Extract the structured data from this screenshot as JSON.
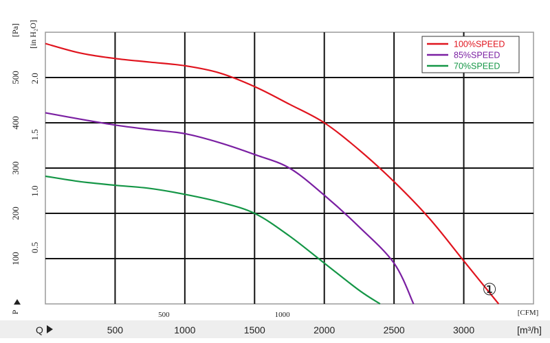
{
  "chart_data": {
    "type": "line",
    "grid": true,
    "legend_position": "top-right",
    "x_axis": {
      "unit": "[m³/h]",
      "ticks": [
        "500",
        "1000",
        "1500",
        "2000",
        "2500",
        "3000"
      ],
      "range": [
        0,
        3500
      ]
    },
    "x_axis_secondary": {
      "unit": "[CFM]",
      "ticks": [
        "500",
        "1000"
      ]
    },
    "y_axis": {
      "unit": "[Pa]",
      "ticks": [
        "100",
        "200",
        "300",
        "400",
        "500"
      ],
      "range": [
        0,
        600
      ]
    },
    "y_axis_secondary": {
      "unit": "[in H₂O]",
      "ticks": [
        "0.5",
        "1.0",
        "1.5",
        "2.0"
      ]
    },
    "q_label": "Q",
    "p_label": "P",
    "curve_marker": "①",
    "series": [
      {
        "name": "100%SPEED",
        "color": "#e0141e",
        "x": [
          0,
          250,
          500,
          750,
          1000,
          1250,
          1500,
          1750,
          2000,
          2250,
          2500,
          2750,
          3000,
          3250
        ],
        "y": [
          575,
          554,
          542,
          534,
          526,
          510,
          480,
          441,
          400,
          340,
          270,
          190,
          95,
          0
        ]
      },
      {
        "name": "85%SPEED",
        "color": "#7a1fa2",
        "x": [
          0,
          250,
          500,
          750,
          1000,
          1250,
          1500,
          1750,
          2000,
          2250,
          2500,
          2750,
          3000
        ],
        "y": [
          422,
          408,
          395,
          385,
          376,
          356,
          330,
          300,
          240,
          170,
          90,
          0,
          0
        ],
        "x_end": 2640
      },
      {
        "name": "70%SPEED",
        "color": "#149646",
        "x": [
          0,
          250,
          500,
          750,
          1000,
          1250,
          1500,
          1750,
          2000,
          2250,
          2400
        ],
        "y": [
          282,
          270,
          262,
          255,
          242,
          225,
          200,
          150,
          90,
          30,
          0
        ]
      }
    ]
  }
}
